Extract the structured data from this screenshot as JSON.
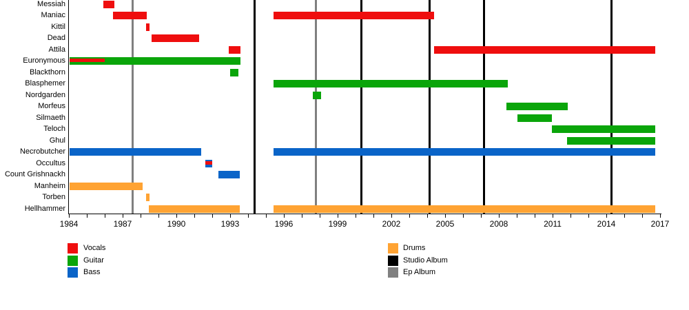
{
  "chart_data": {
    "type": "gantt",
    "colors": {
      "vocals": "#EF0E0E",
      "guitar": "#0AA50A",
      "bass": "#0A64C8",
      "drums": "#FFA333",
      "studio_album": "#000000",
      "ep_album": "#808080"
    },
    "x_axis": {
      "start": 1984,
      "end": 2017,
      "minor_tick_every_years": 1,
      "labels": [
        1984,
        1987,
        1990,
        1993,
        1996,
        1999,
        2002,
        2005,
        2008,
        2011,
        2014,
        2017
      ]
    },
    "rows": [
      {
        "name": "Messiah",
        "bars": [
          {
            "start": 1985.92,
            "end": 1986.54,
            "role": "vocals"
          }
        ]
      },
      {
        "name": "Maniac",
        "bars": [
          {
            "start": 1986.46,
            "end": 1988.35,
            "role": "vocals"
          },
          {
            "start": 1995.42,
            "end": 2004.38,
            "role": "vocals"
          }
        ]
      },
      {
        "name": "Kittil",
        "bars": [
          {
            "start": 1988.31,
            "end": 1988.5,
            "role": "vocals"
          }
        ]
      },
      {
        "name": "Dead",
        "bars": [
          {
            "start": 1988.62,
            "end": 1991.27,
            "role": "vocals"
          }
        ]
      },
      {
        "name": "Attila",
        "bars": [
          {
            "start": 1992.92,
            "end": 1993.58,
            "role": "vocals"
          },
          {
            "start": 2004.38,
            "end": 2016.73,
            "role": "vocals"
          }
        ]
      },
      {
        "name": "Euronymous",
        "bars": [
          {
            "start": 1984.04,
            "end": 1993.58,
            "role": "guitar"
          },
          {
            "start": 1984.04,
            "end": 1986.0,
            "role": "vocals",
            "overlay": true
          }
        ]
      },
      {
        "name": "Blackthorn",
        "bars": [
          {
            "start": 1993.0,
            "end": 1993.46,
            "role": "guitar"
          }
        ]
      },
      {
        "name": "Blasphemer",
        "bars": [
          {
            "start": 1995.42,
            "end": 2008.5,
            "role": "guitar"
          }
        ]
      },
      {
        "name": "Nordgarden",
        "bars": [
          {
            "start": 1997.62,
            "end": 1998.08,
            "role": "guitar"
          }
        ]
      },
      {
        "name": "Morfeus",
        "bars": [
          {
            "start": 2008.42,
            "end": 2011.85,
            "role": "guitar"
          }
        ]
      },
      {
        "name": "Silmaeth",
        "bars": [
          {
            "start": 2009.03,
            "end": 2010.97,
            "role": "guitar"
          }
        ]
      },
      {
        "name": "Teloch",
        "bars": [
          {
            "start": 2010.97,
            "end": 2016.73,
            "role": "guitar"
          }
        ]
      },
      {
        "name": "Ghul",
        "bars": [
          {
            "start": 2011.82,
            "end": 2016.73,
            "role": "guitar"
          }
        ]
      },
      {
        "name": "Necrobutcher",
        "bars": [
          {
            "start": 1984.04,
            "end": 1991.37,
            "role": "bass"
          },
          {
            "start": 1995.42,
            "end": 2016.73,
            "role": "bass"
          }
        ]
      },
      {
        "name": "Occultus",
        "bars": [
          {
            "start": 1991.62,
            "end": 1992.01,
            "role": "bass"
          },
          {
            "start": 1991.62,
            "end": 1992.01,
            "role": "vocals",
            "overlay": true
          }
        ]
      },
      {
        "name": "Count Grishnackh",
        "bars": [
          {
            "start": 1992.33,
            "end": 1993.55,
            "role": "bass"
          }
        ]
      },
      {
        "name": "Manheim",
        "bars": [
          {
            "start": 1984.04,
            "end": 1988.13,
            "role": "drums"
          }
        ]
      },
      {
        "name": "Torben",
        "bars": [
          {
            "start": 1988.3,
            "end": 1988.49,
            "role": "drums"
          }
        ]
      },
      {
        "name": "Hellhammer",
        "bars": [
          {
            "start": 1988.46,
            "end": 1993.55,
            "role": "drums"
          },
          {
            "start": 1995.42,
            "end": 2016.73,
            "role": "drums"
          }
        ]
      }
    ],
    "events": [
      {
        "year": 1987.54,
        "type": "ep_album"
      },
      {
        "year": 1994.38,
        "type": "studio_album"
      },
      {
        "year": 1997.77,
        "type": "ep_album"
      },
      {
        "year": 2000.31,
        "type": "studio_album"
      },
      {
        "year": 2004.15,
        "type": "studio_album"
      },
      {
        "year": 2007.19,
        "type": "studio_album"
      },
      {
        "year": 2014.27,
        "type": "studio_album"
      }
    ],
    "legend": {
      "left": [
        {
          "label": "Vocals",
          "color_key": "vocals"
        },
        {
          "label": "Guitar",
          "color_key": "guitar"
        },
        {
          "label": "Bass",
          "color_key": "bass"
        }
      ],
      "right": [
        {
          "label": "Drums",
          "color_key": "drums"
        },
        {
          "label": "Studio Album",
          "color_key": "studio_album"
        },
        {
          "label": "Ep Album",
          "color_key": "ep_album"
        }
      ]
    }
  }
}
